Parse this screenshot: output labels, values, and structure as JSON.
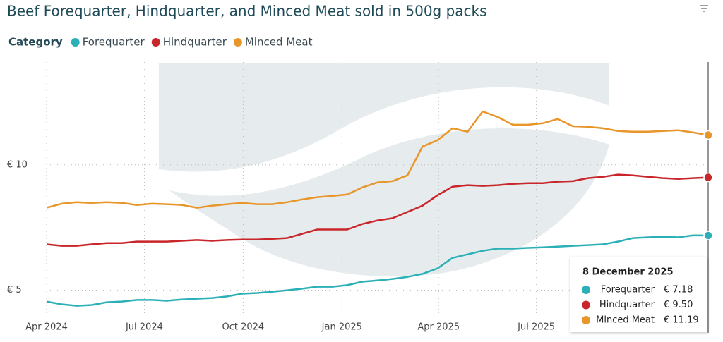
{
  "chart_data": {
    "type": "line",
    "title": "Beef Forequarter, Hindquarter, and Minced Meat sold in 500g packs",
    "legend_title": "Category",
    "x": [
      "2024-04-01",
      "2024-04-15",
      "2024-04-29",
      "2024-05-13",
      "2024-05-27",
      "2024-06-10",
      "2024-06-24",
      "2024-07-08",
      "2024-07-22",
      "2024-08-05",
      "2024-08-19",
      "2024-09-02",
      "2024-09-16",
      "2024-09-30",
      "2024-10-14",
      "2024-10-28",
      "2024-11-11",
      "2024-11-25",
      "2024-12-09",
      "2024-12-23",
      "2025-01-06",
      "2025-01-20",
      "2025-02-03",
      "2025-02-17",
      "2025-03-03",
      "2025-03-17",
      "2025-03-31",
      "2025-04-14",
      "2025-04-28",
      "2025-05-12",
      "2025-05-26",
      "2025-06-09",
      "2025-06-23",
      "2025-07-07",
      "2025-07-21",
      "2025-08-04",
      "2025-08-18",
      "2025-09-01",
      "2025-09-15",
      "2025-09-29",
      "2025-10-13",
      "2025-10-27",
      "2025-11-10",
      "2025-11-24",
      "2025-12-08"
    ],
    "series": [
      {
        "name": "Forequarter",
        "color": "#2bb0b7",
        "values": [
          4.55,
          4.44,
          4.38,
          4.41,
          4.52,
          4.55,
          4.61,
          4.61,
          4.58,
          4.63,
          4.66,
          4.69,
          4.75,
          4.86,
          4.89,
          4.94,
          5.0,
          5.06,
          5.14,
          5.14,
          5.2,
          5.34,
          5.39,
          5.45,
          5.53,
          5.65,
          5.87,
          6.29,
          6.43,
          6.57,
          6.66,
          6.66,
          6.69,
          6.71,
          6.74,
          6.77,
          6.8,
          6.83,
          6.94,
          7.08,
          7.11,
          7.13,
          7.11,
          7.19,
          7.18
        ]
      },
      {
        "name": "Hindquarter",
        "color": "#c8262a",
        "values": [
          6.83,
          6.77,
          6.77,
          6.83,
          6.88,
          6.88,
          6.94,
          6.94,
          6.94,
          6.97,
          7.0,
          6.97,
          7.0,
          7.02,
          7.02,
          7.05,
          7.08,
          7.25,
          7.42,
          7.42,
          7.42,
          7.64,
          7.78,
          7.87,
          8.12,
          8.37,
          8.79,
          9.13,
          9.19,
          9.16,
          9.19,
          9.24,
          9.27,
          9.27,
          9.33,
          9.35,
          9.47,
          9.52,
          9.61,
          9.58,
          9.52,
          9.47,
          9.44,
          9.47,
          9.5
        ]
      },
      {
        "name": "Minced Meat",
        "color": "#e8952a",
        "values": [
          8.29,
          8.45,
          8.51,
          8.48,
          8.51,
          8.48,
          8.4,
          8.45,
          8.43,
          8.4,
          8.29,
          8.37,
          8.43,
          8.48,
          8.43,
          8.43,
          8.51,
          8.62,
          8.71,
          8.76,
          8.82,
          9.1,
          9.3,
          9.35,
          9.58,
          10.73,
          10.98,
          11.46,
          11.32,
          12.13,
          11.91,
          11.6,
          11.6,
          11.66,
          11.83,
          11.54,
          11.52,
          11.46,
          11.35,
          11.32,
          11.32,
          11.35,
          11.38,
          11.29,
          11.19
        ]
      }
    ],
    "xlim": [
      "2024-04-01",
      "2025-12-08"
    ],
    "xticks": [
      {
        "value": "2024-04-01",
        "label": "Apr 2024"
      },
      {
        "value": "2024-07-01",
        "label": "Jul 2024"
      },
      {
        "value": "2024-10-01",
        "label": "Oct 2024"
      },
      {
        "value": "2025-01-01",
        "label": "Jan 2025"
      },
      {
        "value": "2025-04-01",
        "label": "Apr 2025"
      },
      {
        "value": "2025-07-01",
        "label": "Jul 2025"
      }
    ],
    "ylim": [
      4.2,
      14.1
    ],
    "yticks": [
      {
        "value": 5,
        "label": "€ 5"
      },
      {
        "value": 10,
        "label": "€ 10"
      }
    ],
    "grid": true,
    "tooltip": {
      "title": "8 December 2025",
      "value_labels": [
        "€ 7.18",
        "€ 9.50",
        "€ 11.19"
      ]
    }
  }
}
